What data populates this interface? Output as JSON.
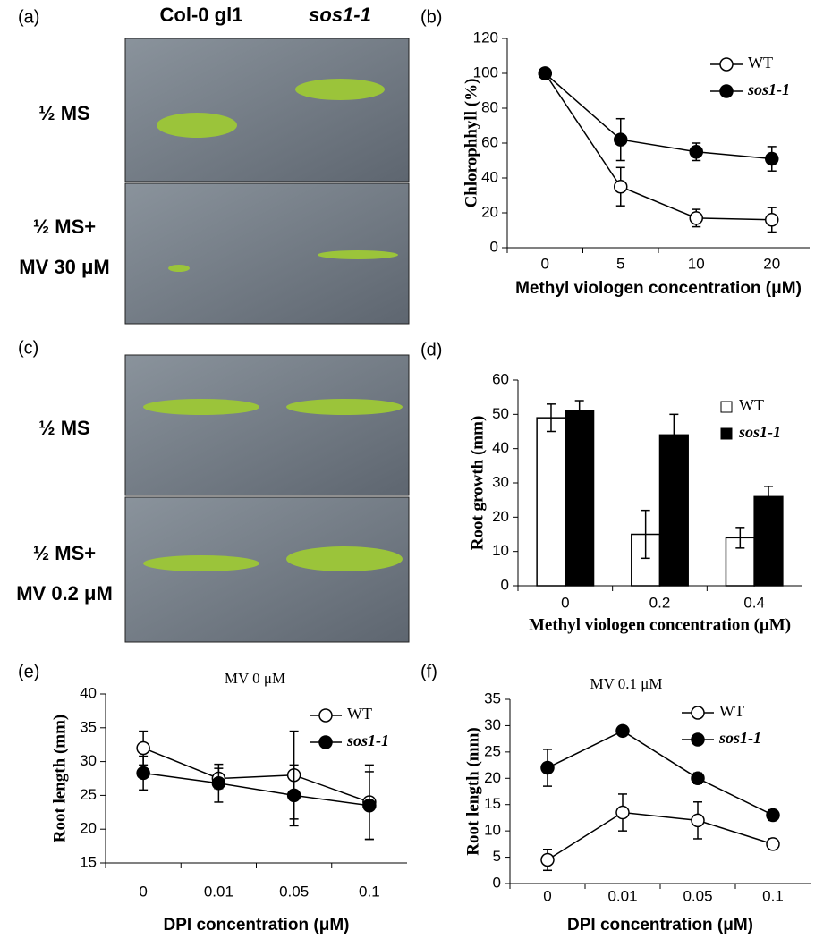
{
  "figure": {
    "panel_a": "(a)",
    "panel_c": "(c)",
    "columns": [
      "Col-0 gl1",
      "sos1-1"
    ],
    "rows_a": [
      "½ MS",
      "½ MS+",
      "MV 30 μM"
    ],
    "rows_c": [
      "½ MS",
      "½ MS+",
      "MV 0.2 μM"
    ]
  },
  "chart_data": [
    {
      "type": "line",
      "panel_label": "(b)",
      "ylabel": "Chlorophhyll (%)",
      "xlabel": "Methyl viologen concentration (μM)",
      "categories": [
        "0",
        "5",
        "10",
        "20"
      ],
      "ylim": [
        0,
        120
      ],
      "yticks": [
        0,
        20,
        40,
        60,
        80,
        100,
        120
      ],
      "legend": "upper right",
      "series": [
        {
          "name": "WT",
          "color": "#ffffff",
          "values": [
            100,
            35,
            17,
            16
          ],
          "errors": [
            0,
            11,
            5,
            7
          ]
        },
        {
          "name": "sos1-1",
          "color": "#000000",
          "values": [
            100,
            62,
            55,
            51
          ],
          "errors": [
            0,
            12,
            5,
            7
          ]
        }
      ]
    },
    {
      "type": "bar",
      "panel_label": "(d)",
      "ylabel": "Root growth (mm)",
      "xlabel": "Methyl viologen concentration (μM)",
      "categories": [
        "0",
        "0.2",
        "0.4"
      ],
      "ylim": [
        0,
        60
      ],
      "yticks": [
        0,
        10,
        20,
        30,
        40,
        50,
        60
      ],
      "legend": "upper right",
      "series": [
        {
          "name": "WT",
          "color": "#ffffff",
          "values": [
            49,
            15,
            14
          ],
          "errors": [
            4,
            7,
            3
          ]
        },
        {
          "name": "sos1-1",
          "color": "#000000",
          "values": [
            51,
            44,
            26
          ],
          "errors": [
            3,
            6,
            3
          ]
        }
      ]
    },
    {
      "type": "line",
      "panel_label": "(e)",
      "title": "MV 0 μM",
      "ylabel": "Root length (mm)",
      "xlabel": "DPI concentration (μM)",
      "categories": [
        "0",
        "0.01",
        "0.05",
        "0.1"
      ],
      "ylim": [
        15,
        40
      ],
      "yticks": [
        15,
        20,
        25,
        30,
        35,
        40
      ],
      "legend": "upper right",
      "series": [
        {
          "name": "WT",
          "color": "#ffffff",
          "values": [
            32,
            27.5,
            28,
            24
          ],
          "errors": [
            2.5,
            1.5,
            6.5,
            5.5
          ]
        },
        {
          "name": "sos1-1",
          "color": "#000000",
          "values": [
            28.3,
            26.8,
            25,
            23.5
          ],
          "errors": [
            2.5,
            2.8,
            4.5,
            5
          ]
        }
      ]
    },
    {
      "type": "line",
      "panel_label": "(f)",
      "title": "MV 0.1 μM",
      "ylabel": "Root length (mm)",
      "xlabel": "DPI concentration (μM)",
      "categories": [
        "0",
        "0.01",
        "0.05",
        "0.1"
      ],
      "ylim": [
        0,
        35
      ],
      "yticks": [
        0,
        5,
        10,
        15,
        20,
        25,
        30,
        35
      ],
      "legend": "upper right",
      "series": [
        {
          "name": "WT",
          "color": "#ffffff",
          "values": [
            4.5,
            13.5,
            12,
            7.5
          ],
          "errors": [
            2,
            3.5,
            3.5,
            1
          ]
        },
        {
          "name": "sos1-1",
          "color": "#000000",
          "values": [
            22,
            29,
            20,
            13
          ],
          "errors": [
            3.5,
            0.8,
            1,
            1
          ]
        }
      ]
    }
  ]
}
